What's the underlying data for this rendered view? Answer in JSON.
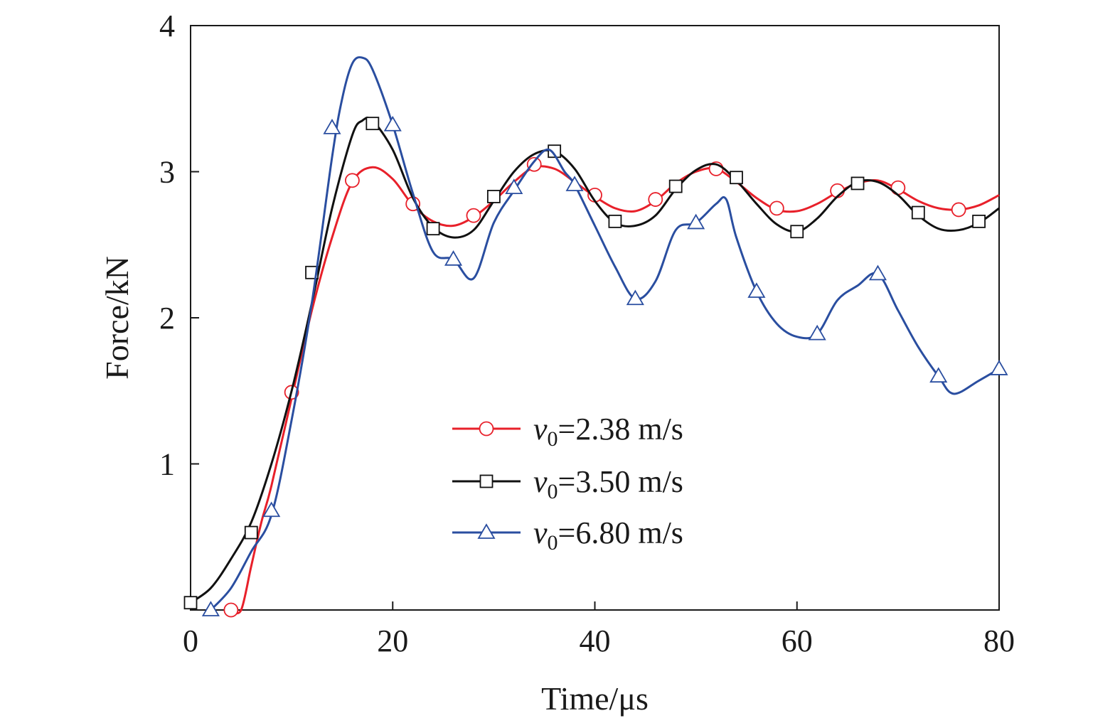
{
  "chart_data": {
    "type": "line",
    "title": "",
    "xlabel": "Time/μs",
    "ylabel": "Force/kN",
    "xlim": [
      0,
      80
    ],
    "ylim": [
      0,
      4
    ],
    "xticks": [
      0,
      20,
      40,
      60,
      80
    ],
    "yticks": [
      1,
      2,
      3,
      4
    ],
    "x_tick_labels": [
      "0",
      "20",
      "40",
      "60",
      "80"
    ],
    "y_tick_labels": [
      "1",
      "2",
      "3",
      "4"
    ],
    "grid": false,
    "legend_position": "center-bottom",
    "series": [
      {
        "name": "v0=2.38 m/s",
        "legend_var": "v",
        "legend_sub": "0",
        "legend_rest": "=2.38 m/s",
        "color": "#e8202a",
        "marker": "circle",
        "curve": [
          [
            4.0,
            0.0
          ],
          [
            5.0,
            0.0
          ],
          [
            6.0,
            0.3
          ],
          [
            7.0,
            0.6
          ],
          [
            8.0,
            0.85
          ],
          [
            10.0,
            1.45
          ],
          [
            12.0,
            2.05
          ],
          [
            14.0,
            2.55
          ],
          [
            16.0,
            2.93
          ],
          [
            18.0,
            3.03
          ],
          [
            20.0,
            2.95
          ],
          [
            22.0,
            2.77
          ],
          [
            24.0,
            2.66
          ],
          [
            26.0,
            2.63
          ],
          [
            28.0,
            2.69
          ],
          [
            30.0,
            2.8
          ],
          [
            32.0,
            2.93
          ],
          [
            34.0,
            3.03
          ],
          [
            36.0,
            3.02
          ],
          [
            38.0,
            2.93
          ],
          [
            40.0,
            2.83
          ],
          [
            42.0,
            2.75
          ],
          [
            44.0,
            2.73
          ],
          [
            46.0,
            2.8
          ],
          [
            48.0,
            2.92
          ],
          [
            50.0,
            3.0
          ],
          [
            52.0,
            3.02
          ],
          [
            54.0,
            2.93
          ],
          [
            56.0,
            2.82
          ],
          [
            58.0,
            2.74
          ],
          [
            60.0,
            2.73
          ],
          [
            62.0,
            2.78
          ],
          [
            64.0,
            2.86
          ],
          [
            66.0,
            2.92
          ],
          [
            68.0,
            2.94
          ],
          [
            70.0,
            2.88
          ],
          [
            72.0,
            2.8
          ],
          [
            74.0,
            2.75
          ],
          [
            76.0,
            2.74
          ],
          [
            78.0,
            2.77
          ],
          [
            80.0,
            2.84
          ]
        ],
        "markers": [
          [
            4.0,
            0.0
          ],
          [
            10.0,
            1.49
          ],
          [
            16.0,
            2.94
          ],
          [
            22.0,
            2.78
          ],
          [
            28.0,
            2.7
          ],
          [
            34.0,
            3.05
          ],
          [
            40.0,
            2.84
          ],
          [
            46.0,
            2.81
          ],
          [
            52.0,
            3.02
          ],
          [
            58.0,
            2.75
          ],
          [
            64.0,
            2.87
          ],
          [
            70.0,
            2.89
          ],
          [
            76.0,
            2.74
          ]
        ]
      },
      {
        "name": "v0=3.50 m/s",
        "legend_var": "v",
        "legend_sub": "0",
        "legend_rest": "=3.50 m/s",
        "color": "#111111",
        "marker": "square",
        "curve": [
          [
            0.0,
            0.05
          ],
          [
            2.0,
            0.15
          ],
          [
            4.0,
            0.35
          ],
          [
            6.0,
            0.6
          ],
          [
            8.0,
            1.0
          ],
          [
            10.0,
            1.5
          ],
          [
            12.0,
            2.1
          ],
          [
            14.0,
            2.75
          ],
          [
            16.0,
            3.25
          ],
          [
            17.0,
            3.35
          ],
          [
            18.0,
            3.35
          ],
          [
            20.0,
            3.15
          ],
          [
            22.0,
            2.82
          ],
          [
            24.0,
            2.62
          ],
          [
            26.0,
            2.55
          ],
          [
            28.0,
            2.6
          ],
          [
            30.0,
            2.8
          ],
          [
            32.0,
            3.0
          ],
          [
            34.0,
            3.12
          ],
          [
            36.0,
            3.14
          ],
          [
            38.0,
            3.02
          ],
          [
            40.0,
            2.8
          ],
          [
            42.0,
            2.65
          ],
          [
            44.0,
            2.63
          ],
          [
            46.0,
            2.7
          ],
          [
            48.0,
            2.88
          ],
          [
            50.0,
            3.01
          ],
          [
            52.0,
            3.05
          ],
          [
            54.0,
            2.94
          ],
          [
            56.0,
            2.78
          ],
          [
            58.0,
            2.64
          ],
          [
            60.0,
            2.59
          ],
          [
            62.0,
            2.68
          ],
          [
            64.0,
            2.83
          ],
          [
            66.0,
            2.93
          ],
          [
            68.0,
            2.93
          ],
          [
            70.0,
            2.84
          ],
          [
            72.0,
            2.7
          ],
          [
            74.0,
            2.61
          ],
          [
            76.0,
            2.6
          ],
          [
            78.0,
            2.65
          ],
          [
            80.0,
            2.75
          ]
        ],
        "markers": [
          [
            0.0,
            0.05
          ],
          [
            6.0,
            0.53
          ],
          [
            12.0,
            2.31
          ],
          [
            18.0,
            3.33
          ],
          [
            24.0,
            2.61
          ],
          [
            30.0,
            2.83
          ],
          [
            36.0,
            3.14
          ],
          [
            42.0,
            2.66
          ],
          [
            48.0,
            2.9
          ],
          [
            54.0,
            2.96
          ],
          [
            60.0,
            2.59
          ],
          [
            66.0,
            2.92
          ],
          [
            72.0,
            2.72
          ],
          [
            78.0,
            2.66
          ]
        ]
      },
      {
        "name": "v0=6.80 m/s",
        "legend_var": "v",
        "legend_sub": "0",
        "legend_rest": "=6.80 m/s",
        "color": "#2a4ea0",
        "marker": "triangle",
        "curve": [
          [
            2.0,
            0.0
          ],
          [
            4.0,
            0.15
          ],
          [
            6.0,
            0.4
          ],
          [
            8.0,
            0.65
          ],
          [
            10.0,
            1.3
          ],
          [
            12.0,
            2.1
          ],
          [
            14.0,
            3.1
          ],
          [
            15.0,
            3.5
          ],
          [
            16.0,
            3.74
          ],
          [
            17.0,
            3.78
          ],
          [
            18.0,
            3.7
          ],
          [
            20.0,
            3.32
          ],
          [
            22.0,
            2.85
          ],
          [
            24.0,
            2.45
          ],
          [
            26.0,
            2.4
          ],
          [
            28.0,
            2.27
          ],
          [
            30.0,
            2.65
          ],
          [
            32.0,
            2.87
          ],
          [
            34.0,
            3.07
          ],
          [
            35.5,
            3.15
          ],
          [
            37.0,
            3.0
          ],
          [
            38.0,
            2.91
          ],
          [
            40.0,
            2.63
          ],
          [
            42.0,
            2.35
          ],
          [
            44.0,
            2.13
          ],
          [
            46.0,
            2.25
          ],
          [
            48.0,
            2.6
          ],
          [
            50.0,
            2.65
          ],
          [
            52.0,
            2.78
          ],
          [
            53.0,
            2.81
          ],
          [
            54.0,
            2.55
          ],
          [
            56.0,
            2.18
          ],
          [
            58.0,
            1.96
          ],
          [
            60.0,
            1.87
          ],
          [
            62.0,
            1.89
          ],
          [
            64.0,
            2.12
          ],
          [
            66.0,
            2.22
          ],
          [
            68.0,
            2.3
          ],
          [
            70.0,
            2.05
          ],
          [
            72.0,
            1.8
          ],
          [
            74.0,
            1.6
          ],
          [
            75.5,
            1.48
          ],
          [
            78.0,
            1.57
          ],
          [
            80.0,
            1.65
          ]
        ],
        "markers": [
          [
            2.0,
            0.0
          ],
          [
            8.0,
            0.68
          ],
          [
            14.0,
            3.3
          ],
          [
            20.0,
            3.32
          ],
          [
            26.0,
            2.4
          ],
          [
            32.0,
            2.89
          ],
          [
            38.0,
            2.91
          ],
          [
            44.0,
            2.13
          ],
          [
            50.0,
            2.65
          ],
          [
            56.0,
            2.18
          ],
          [
            62.0,
            1.89
          ],
          [
            68.0,
            2.3
          ],
          [
            74.0,
            1.6
          ],
          [
            80.0,
            1.65
          ]
        ]
      }
    ]
  }
}
